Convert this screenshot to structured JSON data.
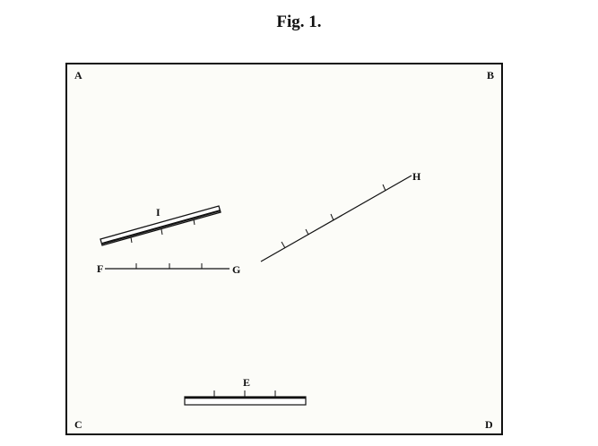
{
  "figure": {
    "title": "Fig. 1."
  },
  "labels": {
    "corner_a": "A",
    "corner_b": "B",
    "corner_c": "C",
    "corner_d": "D",
    "rule_e": "E",
    "line_f": "F",
    "line_g": "G",
    "line_h": "H",
    "rule_i": "I"
  },
  "colors": {
    "ink": "#111111",
    "paper": "#fcfcf8"
  }
}
